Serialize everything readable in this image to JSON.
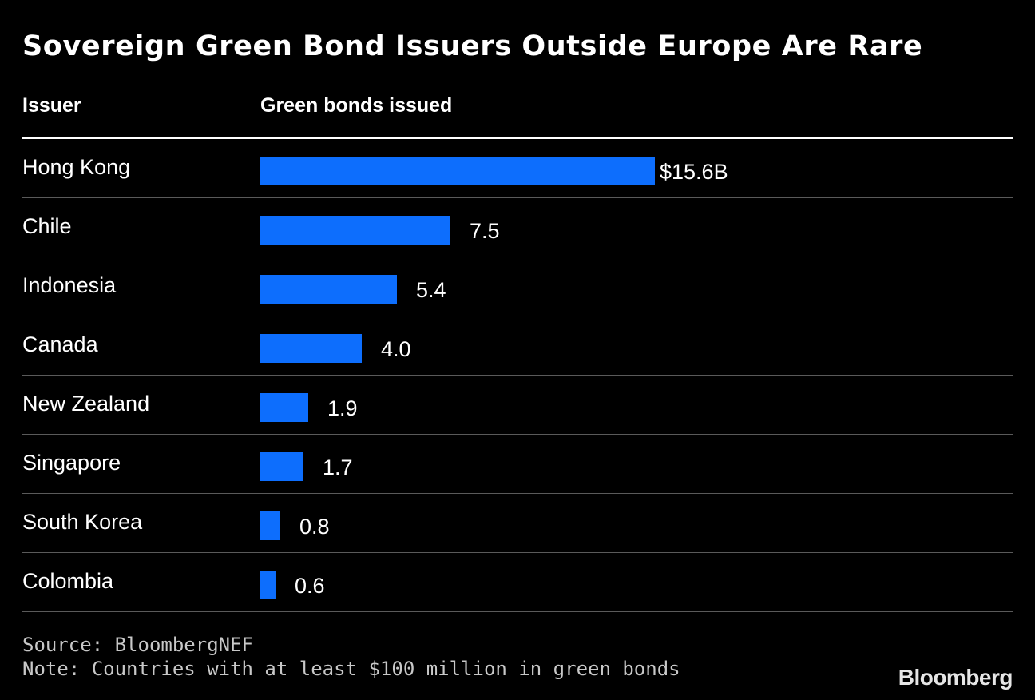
{
  "title": "Sovereign Green Bond Issuers Outside Europe Are Rare",
  "headers": {
    "issuer": "Issuer",
    "value": "Green bonds issued"
  },
  "colors": {
    "background": "#000000",
    "bar": "#0d6efd",
    "text": "#ffffff",
    "rule": "#5a5a5a"
  },
  "chart_data": {
    "type": "bar",
    "orientation": "horizontal",
    "title": "Sovereign Green Bond Issuers Outside Europe Are Rare",
    "xlabel": "Green bonds issued",
    "ylabel": "Issuer",
    "unit": "billion USD",
    "xlim": [
      0,
      15.6
    ],
    "categories": [
      "Hong Kong",
      "Chile",
      "Indonesia",
      "Canada",
      "New Zealand",
      "Singapore",
      "South Korea",
      "Colombia"
    ],
    "values": [
      15.6,
      7.5,
      5.4,
      4.0,
      1.9,
      1.7,
      0.8,
      0.6
    ],
    "value_labels": [
      "$15.6B",
      "7.5",
      "5.4",
      "4.0",
      "1.9",
      "1.7",
      "0.8",
      "0.6"
    ]
  },
  "footer": {
    "source": "Source: BloombergNEF",
    "note": "Note: Countries with at least $100 million in green bonds"
  },
  "logo_text": "Bloomberg"
}
